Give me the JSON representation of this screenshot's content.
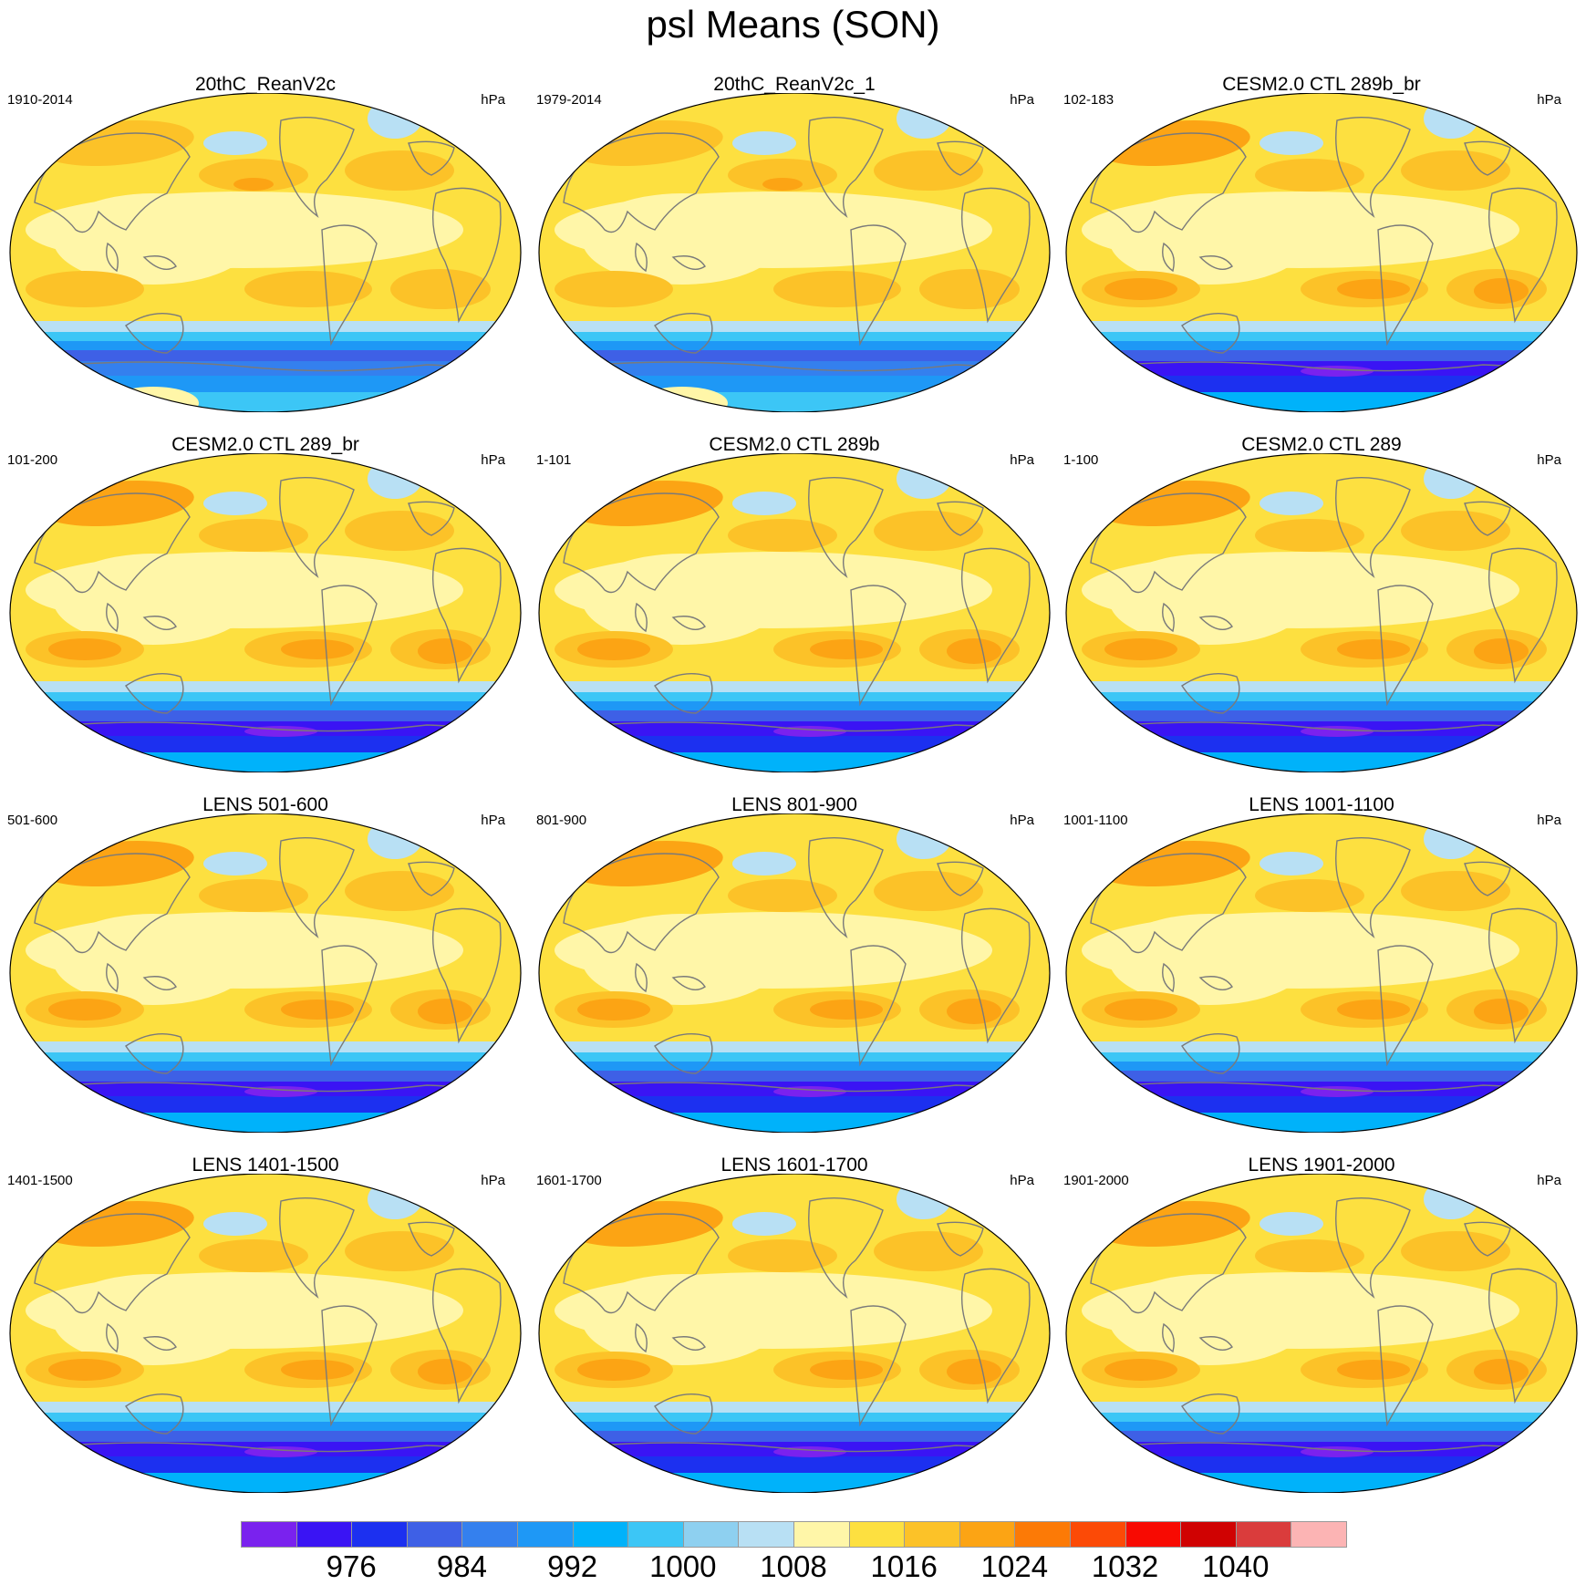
{
  "title": "psl Means (SON)",
  "panels": [
    {
      "title": "20thC_ReanV2c",
      "years": "1910-2014",
      "units": "hPa"
    },
    {
      "title": "20thC_ReanV2c_1",
      "years": "1979-2014",
      "units": "hPa"
    },
    {
      "title": "CESM2.0 CTL 289b_br",
      "years": "102-183",
      "units": "hPa"
    },
    {
      "title": "CESM2.0 CTL 289_br",
      "years": "101-200",
      "units": "hPa"
    },
    {
      "title": "CESM2.0 CTL 289b",
      "years": "1-101",
      "units": "hPa"
    },
    {
      "title": "CESM2.0 CTL 289",
      "years": "1-100",
      "units": "hPa"
    },
    {
      "title": "LENS 501-600",
      "years": "501-600",
      "units": "hPa"
    },
    {
      "title": "LENS 801-900",
      "years": "801-900",
      "units": "hPa"
    },
    {
      "title": "LENS 1001-1100",
      "years": "1001-1100",
      "units": "hPa"
    },
    {
      "title": "LENS 1401-1500",
      "years": "1401-1500",
      "units": "hPa"
    },
    {
      "title": "LENS 1601-1700",
      "years": "1601-1700",
      "units": "hPa"
    },
    {
      "title": "LENS 1901-2000",
      "years": "1901-2000",
      "units": "hPa"
    }
  ],
  "colorbar": {
    "colors": [
      "#7a22ee",
      "#3a14f4",
      "#1c30f0",
      "#3e60e6",
      "#3480ee",
      "#1e98f6",
      "#00b2fa",
      "#3cc6f6",
      "#8ed0f0",
      "#b8e0f4",
      "#fff6a8",
      "#fde040",
      "#fcc228",
      "#fca414",
      "#fc7a06",
      "#fc4a06",
      "#f80a02",
      "#d00202",
      "#da3c3c",
      "#fcb4b4"
    ],
    "labels": [
      {
        "after_box": 2,
        "text": "976"
      },
      {
        "after_box": 4,
        "text": "984"
      },
      {
        "after_box": 6,
        "text": "992"
      },
      {
        "after_box": 8,
        "text": "1000"
      },
      {
        "after_box": 10,
        "text": "1008"
      },
      {
        "after_box": 12,
        "text": "1016"
      },
      {
        "after_box": 14,
        "text": "1024"
      },
      {
        "after_box": 16,
        "text": "1032"
      },
      {
        "after_box": 18,
        "text": "1040"
      }
    ]
  }
}
